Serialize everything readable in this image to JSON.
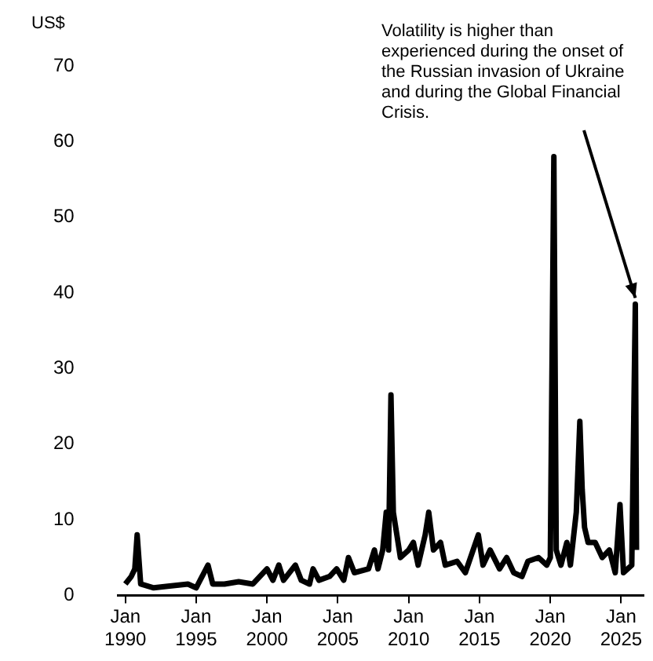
{
  "chart_data": {
    "type": "line",
    "ylabel": "US$",
    "annotations": [
      {
        "text": "Volatility is higher than experienced during the onset of the Russian invasion of Ukraine and during the Global Financial Crisis.",
        "x": "2026-01",
        "y": 38.5
      }
    ],
    "x": [
      "1990-01",
      "1990-06",
      "1990-09",
      "1990-11",
      "1991-02",
      "1992-01",
      "1993-01",
      "1994-06",
      "1995-01",
      "1995-11",
      "1996-03",
      "1997-01",
      "1998-01",
      "1999-01",
      "2000-01",
      "2000-06",
      "2000-11",
      "2001-03",
      "2002-01",
      "2002-06",
      "2003-01",
      "2003-04",
      "2003-09",
      "2004-06",
      "2004-12",
      "2005-06",
      "2005-10",
      "2006-03",
      "2007-03",
      "2007-08",
      "2007-11",
      "2008-03",
      "2008-06",
      "2008-08",
      "2008-10",
      "2008-12",
      "2009-03",
      "2009-06",
      "2010-01",
      "2010-05",
      "2010-09",
      "2011-03",
      "2011-06",
      "2011-10",
      "2012-04",
      "2012-08",
      "2013-06",
      "2014-01",
      "2014-12",
      "2015-04",
      "2015-10",
      "2016-06",
      "2016-12",
      "2017-06",
      "2018-01",
      "2018-06",
      "2019-03",
      "2019-10",
      "2020-01",
      "2020-04",
      "2020-06",
      "2020-10",
      "2021-03",
      "2021-06",
      "2021-11",
      "2022-02",
      "2022-04",
      "2022-06",
      "2022-09",
      "2023-03",
      "2023-09",
      "2024-03",
      "2024-08",
      "2024-12",
      "2025-03",
      "2025-10",
      "2026-01",
      "2026-02"
    ],
    "series": [
      {
        "color": "#000000",
        "values": [
          1.5,
          2.5,
          3.5,
          8,
          1.5,
          1,
          1.2,
          1.5,
          1,
          4,
          1.5,
          1.5,
          1.8,
          1.5,
          3.5,
          2,
          4,
          2,
          4,
          2,
          1.5,
          3.5,
          2,
          2.5,
          3.5,
          2,
          5,
          3,
          3.5,
          6,
          3.5,
          6,
          11,
          6,
          26.5,
          11,
          8,
          5,
          6,
          7,
          4,
          8,
          11,
          6,
          7,
          4,
          4.5,
          3,
          8,
          4,
          6,
          3.5,
          5,
          3,
          2.5,
          4.5,
          5,
          4,
          5,
          58,
          6,
          4,
          7,
          4,
          11,
          23,
          14,
          9,
          7,
          7,
          5,
          6,
          3,
          12,
          3,
          4,
          38.5,
          6
        ]
      }
    ],
    "xlim": [
      "1989-07",
      "2026-08"
    ],
    "xticks": [
      {
        "value": "1990-01",
        "label": "Jan 1990"
      },
      {
        "value": "1995-01",
        "label": "Jan 1995"
      },
      {
        "value": "2000-01",
        "label": "Jan 2000"
      },
      {
        "value": "2005-01",
        "label": "Jan 2005"
      },
      {
        "value": "2010-01",
        "label": "Jan 2010"
      },
      {
        "value": "2015-01",
        "label": "Jan 2015"
      },
      {
        "value": "2020-01",
        "label": "Jan 2020"
      },
      {
        "value": "2025-01",
        "label": "Jan 2025"
      }
    ],
    "ylim": [
      0,
      70
    ],
    "yticks": [
      0,
      10,
      20,
      30,
      40,
      50,
      60,
      70
    ],
    "grid": false,
    "legend": false,
    "marker": "none",
    "line_style": "solid"
  }
}
